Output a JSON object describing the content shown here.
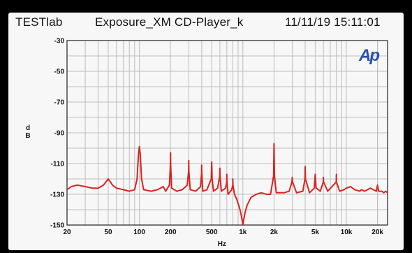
{
  "header": {
    "left": "TESTlab",
    "middle": "Exposure_XM CD-Player_k",
    "right": "11/11/19 15:11:01"
  },
  "logo": {
    "text": "Ap",
    "color": "#2a4fb0"
  },
  "colors": {
    "trace": "#d8241f",
    "grid": "#bdbdbd",
    "frame": "#222222",
    "background": "#f7f7f7"
  },
  "chart_data": {
    "type": "line",
    "title": "",
    "xlabel": "Hz",
    "ylabel": "d B",
    "xscale": "log",
    "xlim": [
      20,
      25000
    ],
    "ylim": [
      -150,
      -30
    ],
    "x_ticks": [
      {
        "value": 20,
        "label": "20"
      },
      {
        "value": 50,
        "label": "50"
      },
      {
        "value": 100,
        "label": "100"
      },
      {
        "value": 200,
        "label": "200"
      },
      {
        "value": 500,
        "label": "500"
      },
      {
        "value": 1000,
        "label": "1k"
      },
      {
        "value": 2000,
        "label": "2k"
      },
      {
        "value": 5000,
        "label": "5k"
      },
      {
        "value": 10000,
        "label": "10k"
      },
      {
        "value": 20000,
        "label": "20k"
      }
    ],
    "y_ticks": [
      {
        "value": -30,
        "label": "-30"
      },
      {
        "value": -50,
        "label": "-50"
      },
      {
        "value": -70,
        "label": "-70"
      },
      {
        "value": -90,
        "label": "-90"
      },
      {
        "value": -110,
        "label": "-110"
      },
      {
        "value": -130,
        "label": "-130"
      },
      {
        "value": -150,
        "label": "-150"
      }
    ],
    "grid": true,
    "series": [
      {
        "values": [
          [
            20,
            -127
          ],
          [
            22,
            -125
          ],
          [
            25,
            -124
          ],
          [
            30,
            -125
          ],
          [
            35,
            -126
          ],
          [
            40,
            -126
          ],
          [
            45,
            -124
          ],
          [
            50,
            -120
          ],
          [
            55,
            -124
          ],
          [
            60,
            -126
          ],
          [
            70,
            -127
          ],
          [
            80,
            -128
          ],
          [
            90,
            -127
          ],
          [
            95,
            -120
          ],
          [
            98,
            -104
          ],
          [
            100,
            -99
          ],
          [
            102,
            -104
          ],
          [
            105,
            -120
          ],
          [
            110,
            -127
          ],
          [
            130,
            -128
          ],
          [
            150,
            -127
          ],
          [
            170,
            -125
          ],
          [
            180,
            -128
          ],
          [
            195,
            -124
          ],
          [
            199,
            -112
          ],
          [
            200,
            -103
          ],
          [
            201,
            -112
          ],
          [
            205,
            -126
          ],
          [
            230,
            -128
          ],
          [
            260,
            -127
          ],
          [
            290,
            -124
          ],
          [
            299,
            -115
          ],
          [
            300,
            -108
          ],
          [
            301,
            -115
          ],
          [
            310,
            -127
          ],
          [
            350,
            -128
          ],
          [
            390,
            -125
          ],
          [
            399,
            -116
          ],
          [
            400,
            -111
          ],
          [
            401,
            -116
          ],
          [
            410,
            -128
          ],
          [
            450,
            -127
          ],
          [
            495,
            -120
          ],
          [
            500,
            -109
          ],
          [
            505,
            -120
          ],
          [
            520,
            -128
          ],
          [
            570,
            -126
          ],
          [
            598,
            -118
          ],
          [
            600,
            -113
          ],
          [
            602,
            -118
          ],
          [
            620,
            -128
          ],
          [
            680,
            -126
          ],
          [
            698,
            -122
          ],
          [
            700,
            -117
          ],
          [
            702,
            -122
          ],
          [
            720,
            -130
          ],
          [
            780,
            -127
          ],
          [
            798,
            -124
          ],
          [
            800,
            -120
          ],
          [
            802,
            -124
          ],
          [
            830,
            -130
          ],
          [
            870,
            -133
          ],
          [
            900,
            -136
          ],
          [
            930,
            -139
          ],
          [
            960,
            -143
          ],
          [
            985,
            -147
          ],
          [
            1000,
            -151
          ],
          [
            1015,
            -147
          ],
          [
            1050,
            -142
          ],
          [
            1100,
            -137
          ],
          [
            1200,
            -132
          ],
          [
            1350,
            -130
          ],
          [
            1500,
            -129
          ],
          [
            1700,
            -130
          ],
          [
            1850,
            -130
          ],
          [
            1980,
            -118
          ],
          [
            2000,
            -97
          ],
          [
            2020,
            -118
          ],
          [
            2100,
            -129
          ],
          [
            2500,
            -129
          ],
          [
            2800,
            -128
          ],
          [
            2980,
            -122
          ],
          [
            3000,
            -119
          ],
          [
            3020,
            -122
          ],
          [
            3300,
            -129
          ],
          [
            3800,
            -128
          ],
          [
            3980,
            -120
          ],
          [
            4000,
            -112
          ],
          [
            4020,
            -120
          ],
          [
            4400,
            -129
          ],
          [
            4900,
            -126
          ],
          [
            5000,
            -117
          ],
          [
            5100,
            -126
          ],
          [
            5600,
            -128
          ],
          [
            5980,
            -122
          ],
          [
            6000,
            -119
          ],
          [
            6020,
            -122
          ],
          [
            6600,
            -128
          ],
          [
            7980,
            -122
          ],
          [
            8000,
            -117
          ],
          [
            8020,
            -122
          ],
          [
            8600,
            -128
          ],
          [
            9500,
            -127
          ],
          [
            10000,
            -126
          ],
          [
            11000,
            -125
          ],
          [
            12000,
            -127
          ],
          [
            13500,
            -128
          ],
          [
            14000,
            -127
          ],
          [
            15000,
            -128
          ],
          [
            17000,
            -126
          ],
          [
            19500,
            -128
          ],
          [
            20000,
            -124
          ],
          [
            20500,
            -128
          ],
          [
            22000,
            -128
          ],
          [
            23000,
            -129
          ],
          [
            24000,
            -128
          ],
          [
            25000,
            -129
          ]
        ]
      }
    ]
  }
}
